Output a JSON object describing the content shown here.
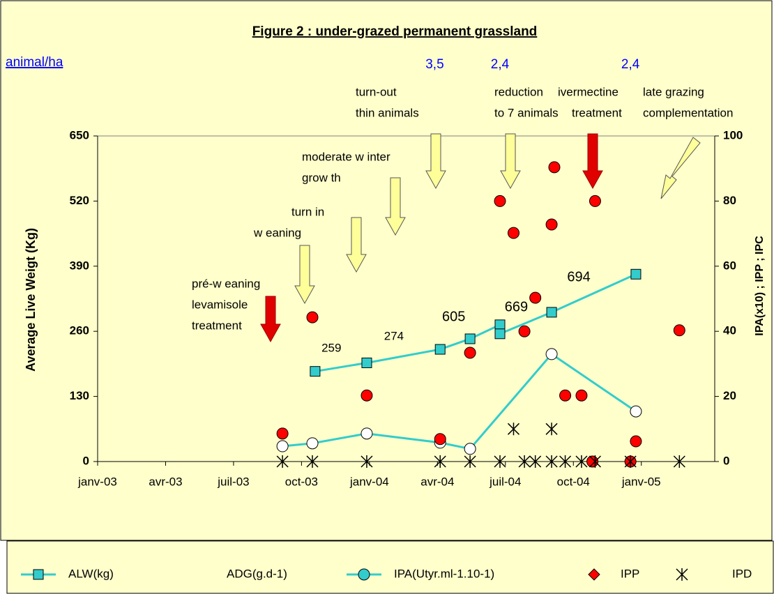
{
  "chart_data": {
    "type": "scatter",
    "title": "Figure 2 : under-grazed permanent grassland",
    "y_label": "Average Live Weigt (Kg)",
    "y2_label": "IPA(x10) ; IPP ; IPC",
    "xlim": [
      2003,
      2005.27
    ],
    "xticks": [
      {
        "value": 2003,
        "label": "janv-03"
      },
      {
        "value": 2003.25,
        "label": "avr-03"
      },
      {
        "value": 2003.5,
        "label": "juil-03"
      },
      {
        "value": 2003.75,
        "label": "oct-03"
      },
      {
        "value": 2004,
        "label": "janv-04"
      },
      {
        "value": 2004.25,
        "label": "avr-04"
      },
      {
        "value": 2004.5,
        "label": "juil-04"
      },
      {
        "value": 2004.75,
        "label": "oct-04"
      },
      {
        "value": 2005,
        "label": "janv-05"
      }
    ],
    "ylim": [
      0,
      650
    ],
    "yticks": [
      0,
      130,
      260,
      390,
      520,
      650
    ],
    "y2lim": [
      0,
      100
    ],
    "y2ticks": [
      0,
      20,
      40,
      60,
      80,
      100
    ],
    "series": [
      {
        "name": "ALW(kg)",
        "color": "#33cccc",
        "marker": "square",
        "line": true,
        "axis": "y",
        "x": [
          2003.8,
          2003.99,
          2004.26,
          2004.37,
          2004.48,
          2004.48,
          2004.67,
          2004.98
        ],
        "values": [
          180,
          197,
          224,
          245,
          273,
          255,
          298,
          374
        ]
      },
      {
        "name": "ADG(g.d-1)",
        "color": "#0000ff",
        "marker": "label",
        "line": false,
        "x": [
          2003.86,
          2004.09,
          2004.31,
          2004.54,
          2004.77
        ],
        "values": [
          259,
          274,
          605,
          669,
          694
        ]
      },
      {
        "name": "IPA(Utyr.ml-1.10-1)",
        "color": "#33cccc",
        "marker": "circle",
        "line": true,
        "axis": "y2",
        "x": [
          2003.68,
          2003.79,
          2003.99,
          2004.26,
          2004.37,
          2004.67,
          2004.98
        ],
        "values": [
          4.7,
          5.6,
          8.6,
          5.8,
          3.9,
          33,
          15.4
        ]
      },
      {
        "name": "IPP",
        "color": "#ff0000",
        "marker": "dot",
        "line": false,
        "axis": "y2",
        "x": [
          2003.68,
          2003.79,
          2003.99,
          2004.26,
          2004.37,
          2004.48,
          2004.53,
          2004.57,
          2004.61,
          2004.67,
          2004.68,
          2004.72,
          2004.78,
          2004.83,
          2004.82,
          2004.96,
          2004.98,
          2005.14
        ],
        "values": [
          8.6,
          44.3,
          20.3,
          6.9,
          33.4,
          80,
          70.2,
          40,
          50.3,
          72.8,
          90.4,
          20.3,
          20.3,
          80,
          0,
          0,
          6.2,
          40.3
        ]
      },
      {
        "name": "IPD",
        "color": "#000000",
        "marker": "star",
        "line": false,
        "axis": "y2",
        "x": [
          2003.68,
          2003.79,
          2003.99,
          2004.26,
          2004.37,
          2004.48,
          2004.57,
          2004.61,
          2004.67,
          2004.72,
          2004.78,
          2004.83,
          2004.96,
          2005.14,
          2004.53,
          2004.67
        ],
        "values": [
          0,
          0,
          0,
          0,
          0,
          0,
          0,
          0,
          0,
          0,
          0,
          0,
          0,
          0,
          10,
          10
        ]
      }
    ],
    "stocking": {
      "title": "animal/ha",
      "x": [
        2004.24,
        2004.48,
        2004.96
      ],
      "values": [
        3.5,
        2.4,
        2.4
      ],
      "value_labels": [
        "3,5",
        "2,4",
        "2,4"
      ]
    },
    "annotations": [
      [
        "pré-w eaning",
        "levamisole",
        "treatment"
      ],
      [
        "turn in",
        "w eaning"
      ],
      [
        "moderate w inter",
        "grow th"
      ],
      [
        "turn-out",
        "thin animals"
      ],
      [
        "reduction",
        "to 7 animals"
      ],
      [
        "ivermectine",
        "treatment"
      ],
      [
        "late grazing",
        "complementation"
      ]
    ]
  }
}
